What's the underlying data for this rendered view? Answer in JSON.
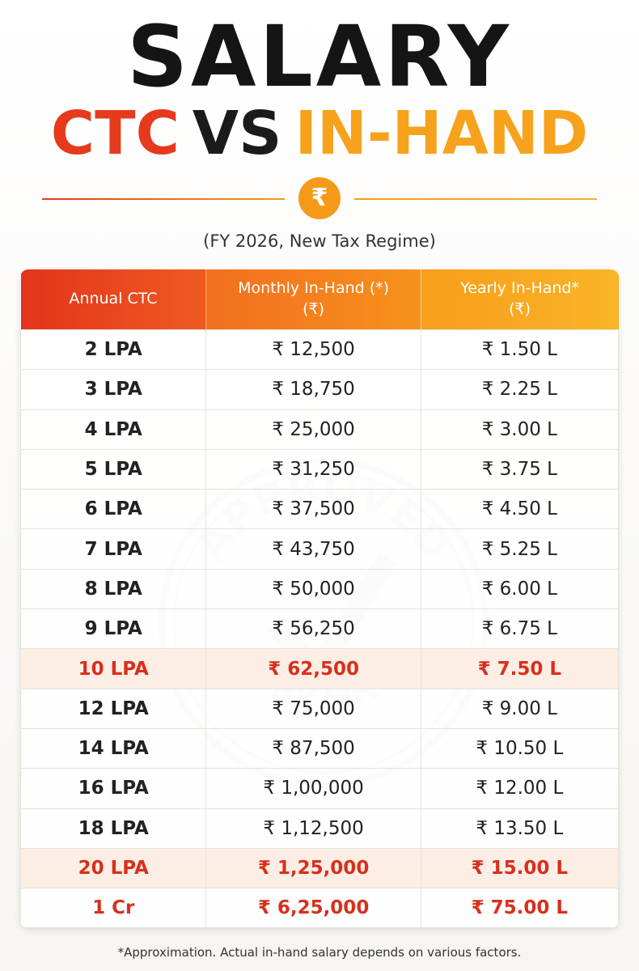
{
  "header": {
    "title": "SALARY",
    "subtitle": [
      "CTC",
      "VS",
      "IN-HAND"
    ],
    "icon": "₹",
    "note": "(FY 2026, New Tax Regime)"
  },
  "table": {
    "columns": [
      [
        "Annual CTC"
      ],
      [
        "Monthly In-Hand (*)",
        "(₹)"
      ],
      [
        "Yearly In-Hand*",
        "(₹)"
      ]
    ],
    "rows": [
      {
        "cells": [
          "2 LPA",
          "₹ 12,500",
          "₹ 1.50 L"
        ],
        "style": "normal"
      },
      {
        "cells": [
          "3 LPA",
          "₹ 18,750",
          "₹ 2.25 L"
        ],
        "style": "normal"
      },
      {
        "cells": [
          "4 LPA",
          "₹ 25,000",
          "₹ 3.00 L"
        ],
        "style": "normal"
      },
      {
        "cells": [
          "5 LPA",
          "₹ 31,250",
          "₹ 3.75 L"
        ],
        "style": "normal"
      },
      {
        "cells": [
          "6 LPA",
          "₹ 37,500",
          "₹ 4.50 L"
        ],
        "style": "normal"
      },
      {
        "cells": [
          "7 LPA",
          "₹ 43,750",
          "₹ 5.25 L"
        ],
        "style": "normal"
      },
      {
        "cells": [
          "8 LPA",
          "₹ 50,000",
          "₹ 6.00 L"
        ],
        "style": "normal"
      },
      {
        "cells": [
          "9 LPA",
          "₹ 56,250",
          "₹ 6.75 L"
        ],
        "style": "normal"
      },
      {
        "cells": [
          "10 LPA",
          "₹ 62,500",
          "₹ 7.50 L"
        ],
        "style": "highlight"
      },
      {
        "cells": [
          "12 LPA",
          "₹ 75,000",
          "₹ 9.00 L"
        ],
        "style": "normal"
      },
      {
        "cells": [
          "14 LPA",
          "₹ 87,500",
          "₹ 10.50 L"
        ],
        "style": "normal"
      },
      {
        "cells": [
          "16 LPA",
          "₹ 1,00,000",
          "₹ 12.00 L"
        ],
        "style": "normal"
      },
      {
        "cells": [
          "18 LPA",
          "₹ 1,12,500",
          "₹ 13.50 L"
        ],
        "style": "normal"
      },
      {
        "cells": [
          "20 LPA",
          "₹ 1,25,000",
          "₹ 15.00 L"
        ],
        "style": "highlight"
      },
      {
        "cells": [
          "1 Cr",
          "₹ 6,25,000",
          "₹ 75.00 L"
        ],
        "style": "emphasis"
      }
    ]
  },
  "stamp": {
    "top": "APPROVED",
    "bottom": "BY HR"
  },
  "footnote": "*Approximation. Actual in-hand salary depends on various factors."
}
